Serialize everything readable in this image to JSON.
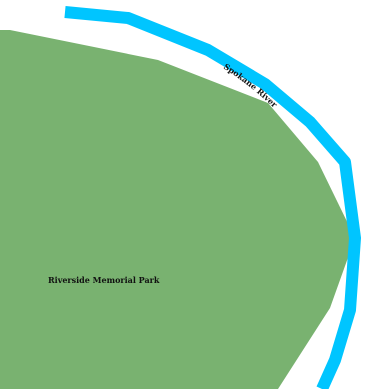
{
  "map": {
    "features": {
      "park": {
        "name": "Riverside Memorial Park",
        "fill_color": "#79b270"
      },
      "river": {
        "name": "Spokane River",
        "stroke_color": "#00c5ff"
      }
    },
    "background_color": "#ffffff"
  }
}
